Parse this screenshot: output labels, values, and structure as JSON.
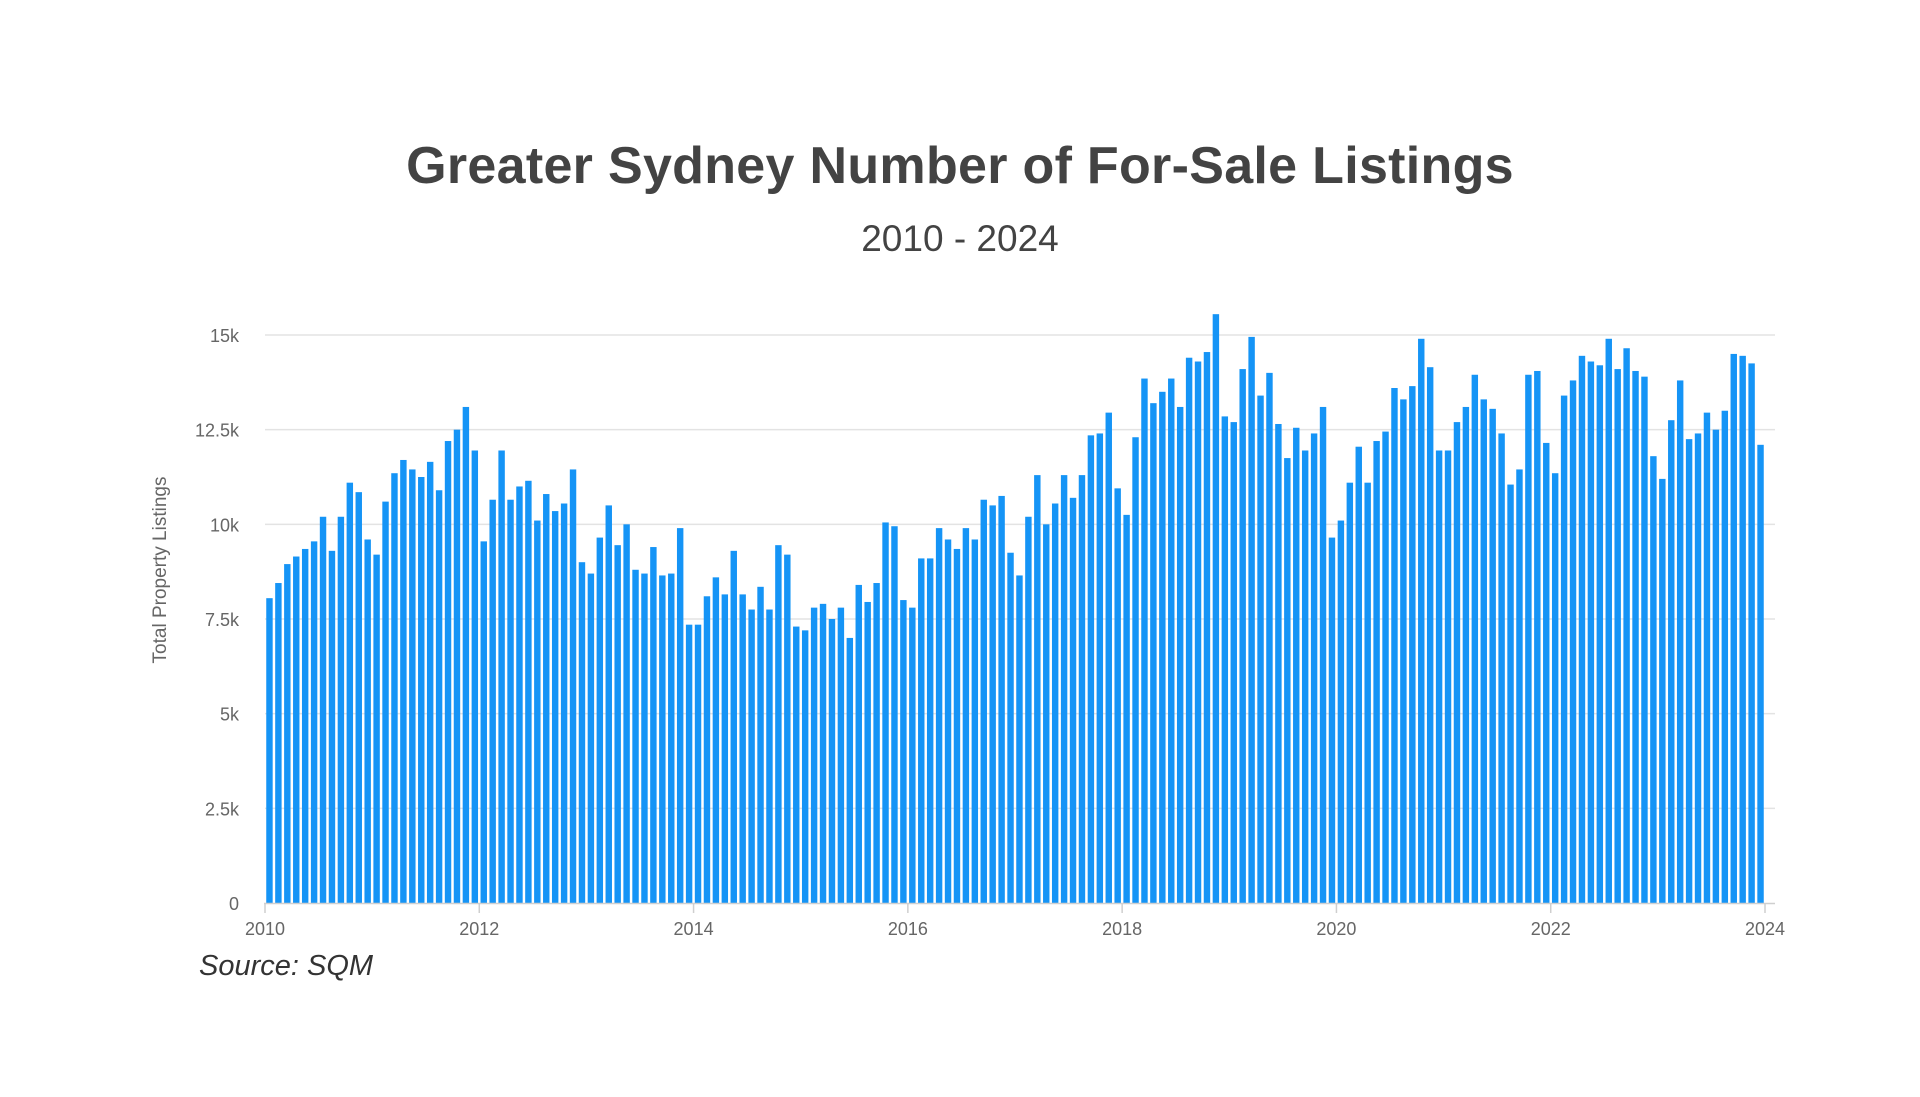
{
  "chart_data": {
    "type": "bar",
    "title": "Greater Sydney Number of For-Sale Listings",
    "subtitle": "2010 - 2024",
    "xlabel": "",
    "ylabel": "Total Property Listings",
    "source": "Source: SQM",
    "ylim": [
      0,
      15000
    ],
    "y_ticks": [
      {
        "value": 0,
        "label": "0"
      },
      {
        "value": 2500,
        "label": "2.5k"
      },
      {
        "value": 5000,
        "label": "5k"
      },
      {
        "value": 7500,
        "label": "7.5k"
      },
      {
        "value": 10000,
        "label": "10k"
      },
      {
        "value": 12500,
        "label": "12.5k"
      },
      {
        "value": 15000,
        "label": "15k"
      }
    ],
    "x_ticks": [
      "2010",
      "2012",
      "2014",
      "2016",
      "2018",
      "2020",
      "2022",
      "2024"
    ],
    "start_year": 2010,
    "start_month": 1,
    "color": "#1594f6",
    "series": [
      {
        "name": "Total Property Listings",
        "values": [
          8050,
          8450,
          8950,
          9150,
          9350,
          9550,
          10200,
          9300,
          10200,
          11100,
          10850,
          9600,
          9200,
          10600,
          11350,
          11700,
          11450,
          11250,
          11650,
          10900,
          12200,
          12500,
          13100,
          11950,
          9550,
          10650,
          11950,
          10650,
          11000,
          11150,
          10100,
          10800,
          10350,
          10550,
          11450,
          9000,
          8700,
          9650,
          10500,
          9450,
          10000,
          8800,
          8700,
          9400,
          8650,
          8700,
          9900,
          7350,
          7350,
          8100,
          8600,
          8150,
          9300,
          8150,
          7750,
          8350,
          7750,
          9450,
          9200,
          7300,
          7200,
          7800,
          7900,
          7500,
          7800,
          7000,
          8400,
          7950,
          8450,
          10050,
          9950,
          8000,
          7800,
          9100,
          9100,
          9900,
          9600,
          9350,
          9900,
          9600,
          10650,
          10500,
          10750,
          9250,
          8650,
          10200,
          11300,
          10000,
          10550,
          11300,
          10700,
          11300,
          12350,
          12400,
          12950,
          10950,
          10250,
          12300,
          13850,
          13200,
          13500,
          13850,
          13100,
          14400,
          14300,
          14550,
          15550,
          12850,
          12700,
          14100,
          14950,
          13400,
          14000,
          12650,
          11750,
          12550,
          11950,
          12400,
          13100,
          9650,
          10100,
          11100,
          12050,
          11100,
          12200,
          12450,
          13600,
          13300,
          13650,
          14900,
          14150,
          11950,
          11950,
          12700,
          13100,
          13950,
          13300,
          13050,
          12400,
          11050,
          11450,
          13950,
          14050,
          12150,
          11350,
          13400,
          13800,
          14450,
          14300,
          14200,
          14900,
          14100,
          14650,
          14050,
          13900,
          11800,
          11200,
          12750,
          13800,
          12250,
          12400,
          12950,
          12500,
          13000,
          14500,
          14450,
          14250,
          12100
        ]
      }
    ]
  }
}
